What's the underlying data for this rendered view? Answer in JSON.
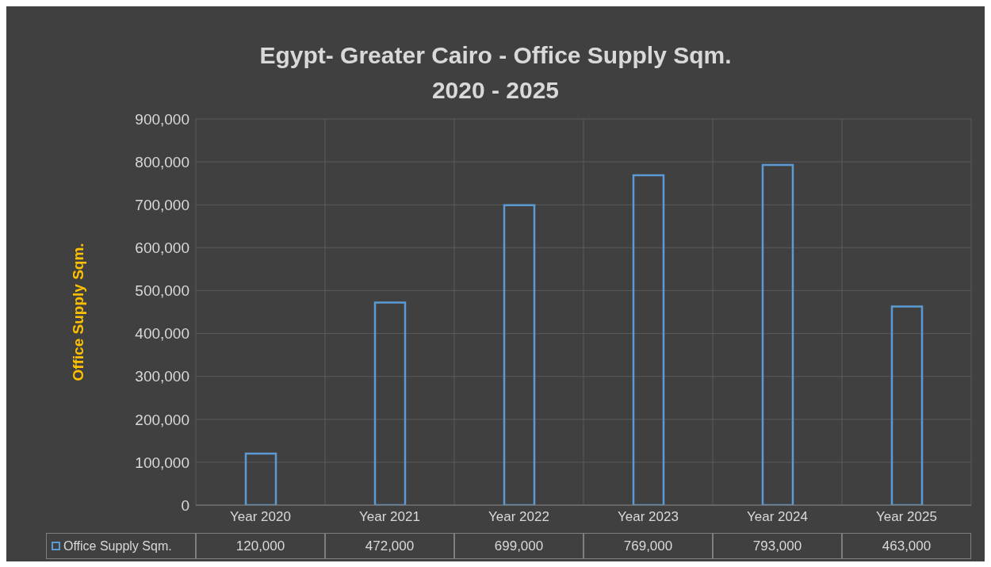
{
  "chart_data": {
    "type": "bar",
    "title": "Egypt- Greater Cairo - Office Supply Sqm.\n2020 - 2025",
    "ylabel": "Office Supply Sqm.",
    "categories": [
      "Year 2020",
      "Year 2021",
      "Year 2022",
      "Year 2023",
      "Year 2024",
      "Year 2025"
    ],
    "series": [
      {
        "name": "Office Supply Sqm.",
        "color": "#5b9bd5",
        "values": [
          120000,
          472000,
          699000,
          769000,
          793000,
          463000
        ],
        "value_labels": [
          "120,000",
          "472,000",
          "699,000",
          "769,000",
          "793,000",
          "463,000"
        ]
      }
    ],
    "ylim": [
      0,
      900000
    ],
    "yticks": [
      0,
      {
        "value": 100000,
        "label": "100,000"
      },
      {
        "value": 200000,
        "label": "200,000"
      },
      {
        "value": 300000,
        "label": "300,000"
      },
      {
        "value": 400000,
        "label": "400,000"
      },
      {
        "value": 500000,
        "label": "500,000"
      },
      {
        "value": 600000,
        "label": "600,000"
      },
      {
        "value": 700000,
        "label": "700,000"
      },
      {
        "value": 800000,
        "label": "800,000"
      },
      {
        "value": 900000,
        "label": "900,000"
      }
    ],
    "grid": true,
    "legend": "bottom"
  }
}
